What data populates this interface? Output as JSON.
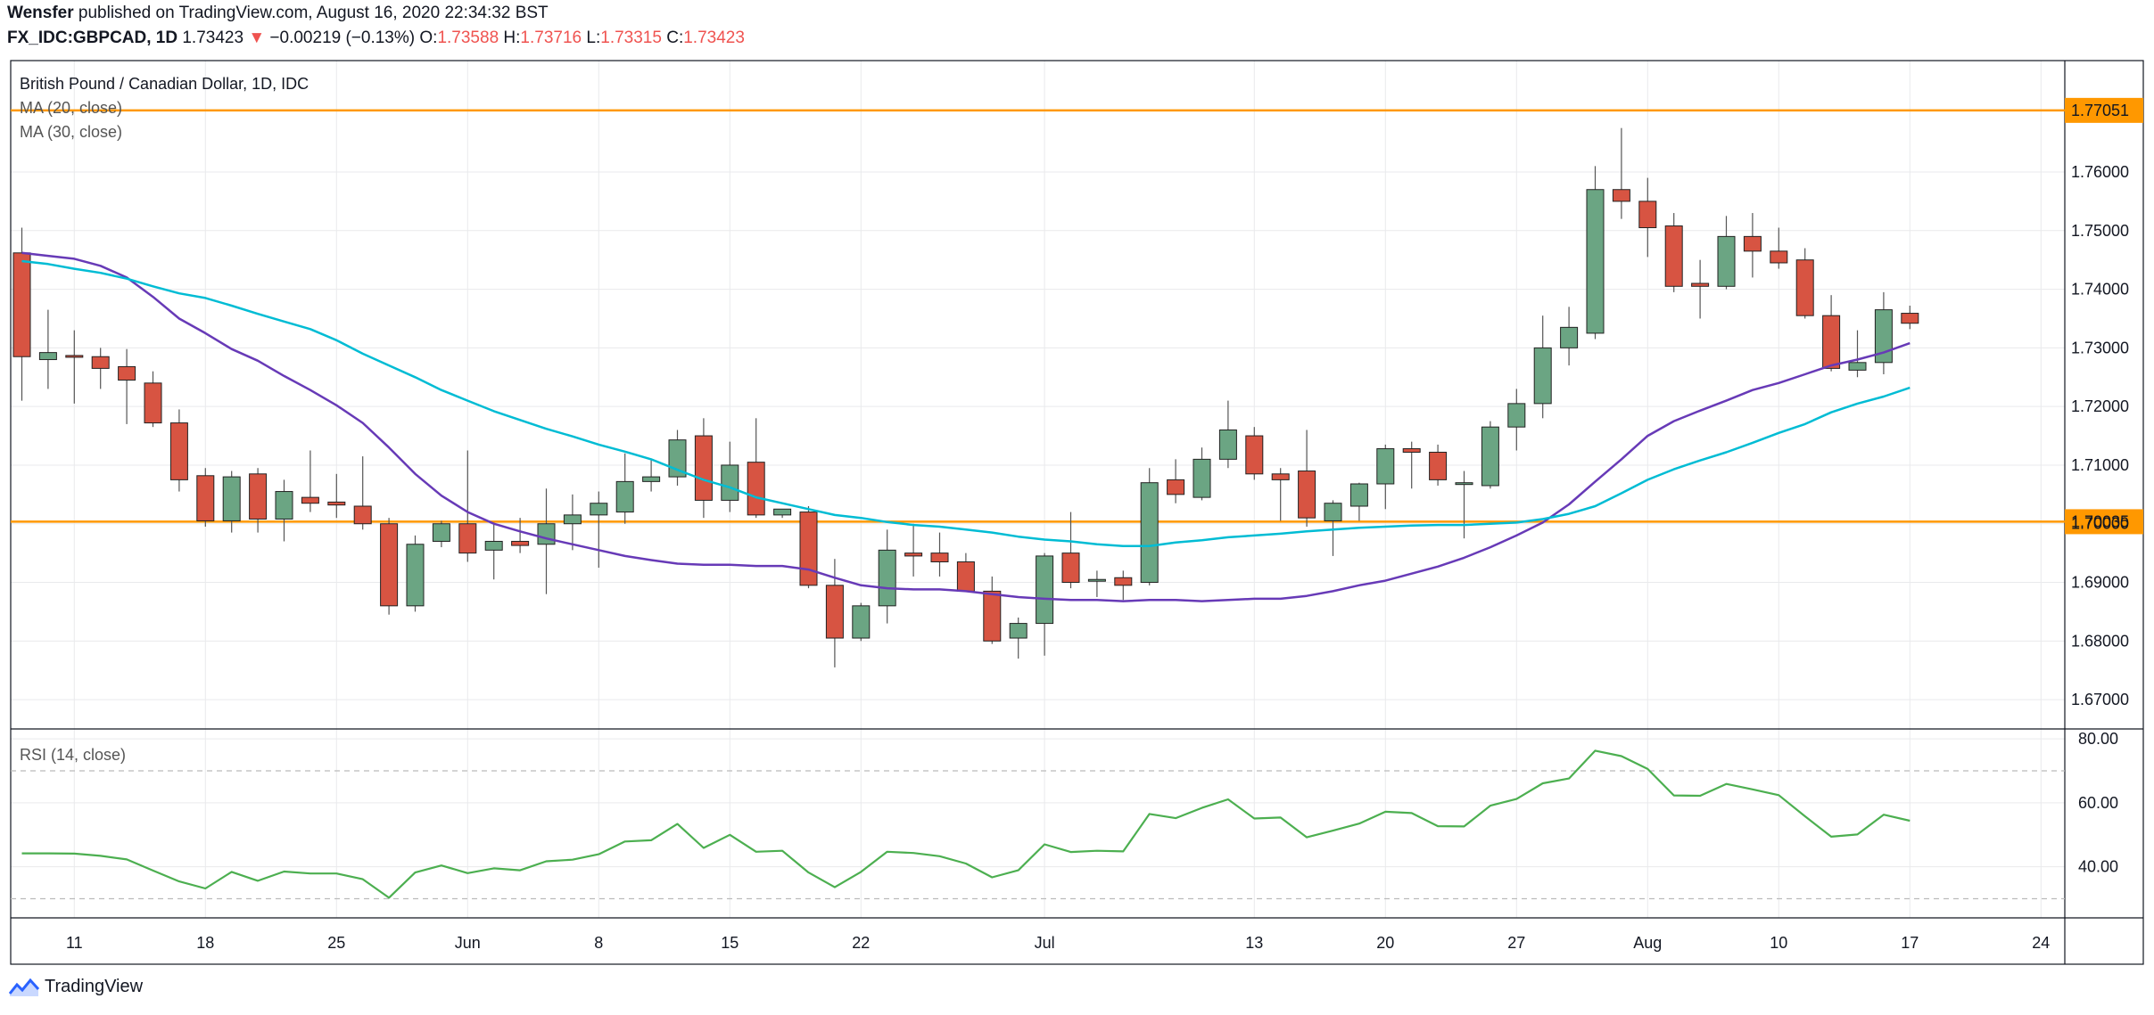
{
  "header": {
    "author": "Wensfer",
    "published_text": "published on TradingView.com, August 16, 2020 22:34:32 BST",
    "symbol": "FX_IDC:GBPCAD, 1D",
    "last": "1.73423",
    "change": "−0.00219 (−0.13%)",
    "o_label": "O:",
    "o": "1.73588",
    "h_label": "H:",
    "h": "1.73716",
    "l_label": "L:",
    "l": "1.73315",
    "c_label": "C:",
    "c": "1.73423"
  },
  "legend": {
    "title": "British Pound / Canadian Dollar, 1D, IDC",
    "ma20": "MA (20, close)",
    "ma30": "MA (30, close)",
    "rsi": "RSI (14, close)"
  },
  "footer": {
    "brand": "TradingView"
  },
  "colors": {
    "up": "#6ba583",
    "down": "#d75442",
    "ma20": "#673ab7",
    "ma30": "#00bcd4",
    "rsi": "#4caf50",
    "hline": "#ff9800",
    "grid": "#e9eaec"
  },
  "chart_data": {
    "type": "candlestick",
    "title": "British Pound / Canadian Dollar, 1D, IDC",
    "price_ylim": [
      1.665,
      1.779
    ],
    "price_ticks": [
      "1.67000",
      "1.68000",
      "1.69000",
      "1.70000",
      "1.71000",
      "1.72000",
      "1.73000",
      "1.74000",
      "1.75000",
      "1.76000"
    ],
    "horizontal_levels": [
      {
        "value": 1.77051,
        "label": "1.77051"
      },
      {
        "value": 1.70035,
        "label": "1.70035"
      }
    ],
    "x_ticks": [
      {
        "i": 2,
        "label": "11"
      },
      {
        "i": 7,
        "label": "18"
      },
      {
        "i": 12,
        "label": "25"
      },
      {
        "i": 17,
        "label": "Jun"
      },
      {
        "i": 22,
        "label": "8"
      },
      {
        "i": 27,
        "label": "15"
      },
      {
        "i": 32,
        "label": "22"
      },
      {
        "i": 39,
        "label": "Jul"
      },
      {
        "i": 47,
        "label": "13"
      },
      {
        "i": 52,
        "label": "20"
      },
      {
        "i": 57,
        "label": "27"
      },
      {
        "i": 62,
        "label": "Aug"
      },
      {
        "i": 67,
        "label": "10"
      },
      {
        "i": 72,
        "label": "17"
      },
      {
        "i": 77,
        "label": "24"
      }
    ],
    "candles": [
      {
        "o": 1.7462,
        "h": 1.7505,
        "l": 1.721,
        "c": 1.7285
      },
      {
        "o": 1.728,
        "h": 1.7365,
        "l": 1.723,
        "c": 1.7292
      },
      {
        "o": 1.7287,
        "h": 1.733,
        "l": 1.7205,
        "c": 1.7285
      },
      {
        "o": 1.7285,
        "h": 1.73,
        "l": 1.723,
        "c": 1.7265
      },
      {
        "o": 1.7268,
        "h": 1.7298,
        "l": 1.717,
        "c": 1.7245
      },
      {
        "o": 1.724,
        "h": 1.726,
        "l": 1.7165,
        "c": 1.7172
      },
      {
        "o": 1.7172,
        "h": 1.7195,
        "l": 1.7055,
        "c": 1.7075
      },
      {
        "o": 1.7082,
        "h": 1.7095,
        "l": 1.6995,
        "c": 1.7005
      },
      {
        "o": 1.7005,
        "h": 1.709,
        "l": 1.6985,
        "c": 1.708
      },
      {
        "o": 1.7085,
        "h": 1.7095,
        "l": 1.6985,
        "c": 1.7008
      },
      {
        "o": 1.7008,
        "h": 1.7075,
        "l": 1.697,
        "c": 1.7055
      },
      {
        "o": 1.7045,
        "h": 1.7125,
        "l": 1.702,
        "c": 1.7035
      },
      {
        "o": 1.7037,
        "h": 1.7085,
        "l": 1.701,
        "c": 1.7032
      },
      {
        "o": 1.703,
        "h": 1.7115,
        "l": 1.699,
        "c": 1.7
      },
      {
        "o": 1.7,
        "h": 1.701,
        "l": 1.6845,
        "c": 1.686
      },
      {
        "o": 1.686,
        "h": 1.698,
        "l": 1.685,
        "c": 1.6965
      },
      {
        "o": 1.697,
        "h": 1.7005,
        "l": 1.696,
        "c": 1.7
      },
      {
        "o": 1.7,
        "h": 1.7125,
        "l": 1.6935,
        "c": 1.695
      },
      {
        "o": 1.6955,
        "h": 1.7,
        "l": 1.6905,
        "c": 1.697
      },
      {
        "o": 1.697,
        "h": 1.701,
        "l": 1.695,
        "c": 1.6963
      },
      {
        "o": 1.6965,
        "h": 1.706,
        "l": 1.688,
        "c": 1.7
      },
      {
        "o": 1.7,
        "h": 1.705,
        "l": 1.6955,
        "c": 1.7015
      },
      {
        "o": 1.7015,
        "h": 1.7055,
        "l": 1.6925,
        "c": 1.7035
      },
      {
        "o": 1.702,
        "h": 1.712,
        "l": 1.7,
        "c": 1.7072
      },
      {
        "o": 1.7072,
        "h": 1.711,
        "l": 1.7055,
        "c": 1.708
      },
      {
        "o": 1.708,
        "h": 1.716,
        "l": 1.7065,
        "c": 1.7143
      },
      {
        "o": 1.715,
        "h": 1.718,
        "l": 1.701,
        "c": 1.704
      },
      {
        "o": 1.704,
        "h": 1.714,
        "l": 1.702,
        "c": 1.71
      },
      {
        "o": 1.7105,
        "h": 1.718,
        "l": 1.701,
        "c": 1.7015
      },
      {
        "o": 1.7015,
        "h": 1.7025,
        "l": 1.701,
        "c": 1.7025
      },
      {
        "o": 1.702,
        "h": 1.703,
        "l": 1.689,
        "c": 1.6895
      },
      {
        "o": 1.6895,
        "h": 1.694,
        "l": 1.6755,
        "c": 1.6805
      },
      {
        "o": 1.6805,
        "h": 1.6865,
        "l": 1.68,
        "c": 1.686
      },
      {
        "o": 1.686,
        "h": 1.699,
        "l": 1.683,
        "c": 1.6955
      },
      {
        "o": 1.695,
        "h": 1.7,
        "l": 1.691,
        "c": 1.6945
      },
      {
        "o": 1.695,
        "h": 1.6985,
        "l": 1.691,
        "c": 1.6935
      },
      {
        "o": 1.6935,
        "h": 1.695,
        "l": 1.6885,
        "c": 1.6885
      },
      {
        "o": 1.6885,
        "h": 1.691,
        "l": 1.6795,
        "c": 1.68
      },
      {
        "o": 1.6805,
        "h": 1.684,
        "l": 1.677,
        "c": 1.683
      },
      {
        "o": 1.683,
        "h": 1.695,
        "l": 1.6775,
        "c": 1.6945
      },
      {
        "o": 1.695,
        "h": 1.702,
        "l": 1.689,
        "c": 1.69
      },
      {
        "o": 1.6905,
        "h": 1.692,
        "l": 1.6875,
        "c": 1.6905
      },
      {
        "o": 1.6908,
        "h": 1.692,
        "l": 1.687,
        "c": 1.6895
      },
      {
        "o": 1.69,
        "h": 1.7095,
        "l": 1.6895,
        "c": 1.707
      },
      {
        "o": 1.7075,
        "h": 1.711,
        "l": 1.7035,
        "c": 1.705
      },
      {
        "o": 1.7045,
        "h": 1.713,
        "l": 1.704,
        "c": 1.711
      },
      {
        "o": 1.711,
        "h": 1.721,
        "l": 1.7095,
        "c": 1.716
      },
      {
        "o": 1.715,
        "h": 1.7165,
        "l": 1.7075,
        "c": 1.7085
      },
      {
        "o": 1.7085,
        "h": 1.7095,
        "l": 1.7005,
        "c": 1.7075
      },
      {
        "o": 1.709,
        "h": 1.716,
        "l": 1.6995,
        "c": 1.701
      },
      {
        "o": 1.7005,
        "h": 1.704,
        "l": 1.6945,
        "c": 1.7035
      },
      {
        "o": 1.703,
        "h": 1.707,
        "l": 1.7005,
        "c": 1.7068
      },
      {
        "o": 1.7068,
        "h": 1.7135,
        "l": 1.7025,
        "c": 1.7128
      },
      {
        "o": 1.7128,
        "h": 1.714,
        "l": 1.706,
        "c": 1.7122
      },
      {
        "o": 1.7122,
        "h": 1.7135,
        "l": 1.7065,
        "c": 1.7075
      },
      {
        "o": 1.707,
        "h": 1.709,
        "l": 1.6975,
        "c": 1.707
      },
      {
        "o": 1.7065,
        "h": 1.7175,
        "l": 1.706,
        "c": 1.7165
      },
      {
        "o": 1.7165,
        "h": 1.723,
        "l": 1.7125,
        "c": 1.7205
      },
      {
        "o": 1.7205,
        "h": 1.7355,
        "l": 1.718,
        "c": 1.73
      },
      {
        "o": 1.73,
        "h": 1.737,
        "l": 1.727,
        "c": 1.7335
      },
      {
        "o": 1.7325,
        "h": 1.761,
        "l": 1.7315,
        "c": 1.757
      },
      {
        "o": 1.757,
        "h": 1.7675,
        "l": 1.752,
        "c": 1.755
      },
      {
        "o": 1.755,
        "h": 1.759,
        "l": 1.7455,
        "c": 1.7505
      },
      {
        "o": 1.7508,
        "h": 1.753,
        "l": 1.7395,
        "c": 1.7405
      },
      {
        "o": 1.741,
        "h": 1.745,
        "l": 1.735,
        "c": 1.7405
      },
      {
        "o": 1.7405,
        "h": 1.7525,
        "l": 1.74,
        "c": 1.749
      },
      {
        "o": 1.749,
        "h": 1.753,
        "l": 1.742,
        "c": 1.7465
      },
      {
        "o": 1.7465,
        "h": 1.7505,
        "l": 1.7435,
        "c": 1.7445
      },
      {
        "o": 1.745,
        "h": 1.747,
        "l": 1.735,
        "c": 1.7355
      },
      {
        "o": 1.7355,
        "h": 1.739,
        "l": 1.726,
        "c": 1.7265
      },
      {
        "o": 1.7262,
        "h": 1.733,
        "l": 1.725,
        "c": 1.7275
      },
      {
        "o": 1.7275,
        "h": 1.7395,
        "l": 1.7255,
        "c": 1.7365
      },
      {
        "o": 1.7359,
        "h": 1.7372,
        "l": 1.7332,
        "c": 1.7342
      }
    ],
    "series": [
      {
        "name": "MA (20, close)",
        "values": [
          1.7462,
          1.7457,
          1.7452,
          1.744,
          1.742,
          1.7387,
          1.735,
          1.7325,
          1.7298,
          1.7278,
          1.7252,
          1.7228,
          1.7202,
          1.7172,
          1.713,
          1.7085,
          1.7048,
          1.702,
          1.7,
          1.6987,
          1.6975,
          1.6965,
          1.6955,
          1.6945,
          1.6938,
          1.6932,
          1.693,
          1.693,
          1.6928,
          1.6928,
          1.6922,
          1.6908,
          1.6895,
          1.689,
          1.6888,
          1.6888,
          1.6885,
          1.688,
          1.6875,
          1.6872,
          1.687,
          1.687,
          1.6868,
          1.687,
          1.687,
          1.6868,
          1.687,
          1.6872,
          1.6872,
          1.6877,
          1.6885,
          1.6895,
          1.6903,
          1.6915,
          1.6927,
          1.6942,
          1.696,
          1.698,
          1.7002,
          1.7033,
          1.7072,
          1.711,
          1.715,
          1.7175,
          1.7193,
          1.721,
          1.7228,
          1.724,
          1.7255,
          1.727,
          1.728,
          1.7292,
          1.7308
        ]
      },
      {
        "name": "MA (30, close)",
        "values": [
          1.7448,
          1.7443,
          1.7435,
          1.7428,
          1.7418,
          1.7405,
          1.7393,
          1.7385,
          1.7372,
          1.7358,
          1.7345,
          1.7332,
          1.7313,
          1.729,
          1.727,
          1.725,
          1.7228,
          1.721,
          1.7192,
          1.7177,
          1.7162,
          1.7149,
          1.7135,
          1.7123,
          1.711,
          1.7092,
          1.7075,
          1.7062,
          1.7045,
          1.7035,
          1.7025,
          1.7015,
          1.701,
          1.7003,
          1.6998,
          1.6995,
          1.699,
          1.6985,
          1.6978,
          1.6973,
          1.697,
          1.6965,
          1.6962,
          1.6962,
          1.6968,
          1.6972,
          1.6977,
          1.698,
          1.6983,
          1.6987,
          1.699,
          1.6993,
          1.6995,
          1.6997,
          1.6998,
          1.6998,
          1.7,
          1.7002,
          1.7008,
          1.7017,
          1.703,
          1.7052,
          1.7075,
          1.7093,
          1.7108,
          1.7122,
          1.7138,
          1.7155,
          1.717,
          1.719,
          1.7205,
          1.7217,
          1.7232
        ]
      }
    ],
    "rsi": {
      "name": "RSI (14, close)",
      "ylim": [
        24,
        82
      ],
      "ticks": [
        "40.00",
        "60.00",
        "80.00"
      ],
      "bands": [
        30,
        70
      ],
      "values": [
        44.2,
        44.2,
        44.1,
        43.4,
        42.3,
        38.8,
        35.4,
        33.2,
        38.4,
        35.6,
        38.5,
        37.9,
        37.9,
        36.1,
        30.3,
        38.2,
        40.4,
        38.0,
        39.5,
        38.9,
        41.7,
        42.2,
        43.9,
        47.9,
        48.3,
        53.4,
        45.9,
        50.0,
        44.7,
        45.0,
        38.2,
        33.6,
        38.4,
        44.7,
        44.3,
        43.3,
        41.0,
        36.7,
        38.9,
        47.0,
        44.6,
        45.0,
        44.8,
        56.5,
        55.2,
        58.4,
        61.1,
        55.1,
        55.4,
        49.2,
        51.3,
        53.5,
        57.2,
        56.8,
        52.7,
        52.6,
        59.1,
        61.2,
        66.1,
        67.6,
        76.3,
        74.6,
        70.6,
        62.3,
        62.2,
        65.9,
        64.2,
        62.4,
        55.8,
        49.4,
        50.1,
        56.3,
        54.4
      ]
    }
  }
}
